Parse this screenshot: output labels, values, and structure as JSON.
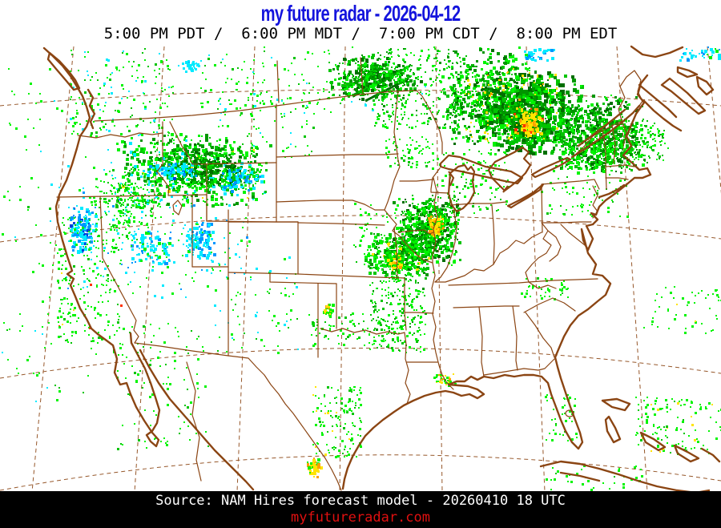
{
  "header": {
    "title": "my future radar - 2026-04-12",
    "title_color": "#1414dd",
    "subtitle": "5:00 PM PDT /  6:00 PM MDT /  7:00 PM CDT /  8:00 PM EDT",
    "subtitle_color": "#000000"
  },
  "footer": {
    "source_line": "Source: NAM Hires forecast model - 20260410 18 UTC",
    "source_color": "#ffffff",
    "website": "myfutureradar.com",
    "website_color": "#e01010",
    "bar_color": "#000000"
  },
  "map": {
    "line_color": "#8b4513",
    "background": "#ffffff",
    "region": "Continental United States with southern Canada, northern Mexico, Cuba and Bahamas",
    "graticule": "dashed brown lat/lon lines"
  },
  "chart_data": {
    "type": "heatmap",
    "title": "Simulated composite radar reflectivity forecast",
    "legend_position": "none",
    "palette": {
      "G1": "#00f400",
      "G2": "#00c400",
      "G3": "#009600",
      "G4": "#006e00",
      "Y": "#ffe400",
      "O": "#ffa000",
      "C": "#00eaff",
      "B": "#0096ff",
      "D": "#0040d8",
      "R": "#ff3200"
    },
    "cell_fields": [
      "region",
      "cx",
      "cy",
      "w",
      "h",
      "count",
      "size",
      "dist",
      "colors"
    ],
    "cells": [
      [
        "pacific-offshore",
        75,
        290,
        150,
        420,
        130,
        2,
        "u",
        [
          [
            "G1",
            0.85
          ],
          [
            "C",
            0.1
          ],
          [
            "G2",
            0.05
          ]
        ]
      ],
      [
        "washington-coast",
        150,
        115,
        130,
        110,
        160,
        2,
        "u",
        [
          [
            "G1",
            0.6
          ],
          [
            "G2",
            0.25
          ],
          [
            "C",
            0.15
          ]
        ]
      ],
      [
        "bc-cyan-patch",
        237,
        80,
        28,
        14,
        25,
        3,
        "g",
        [
          [
            "C",
            0.9
          ],
          [
            "B",
            0.1
          ]
        ]
      ],
      [
        "southern-canada-prairie",
        400,
        100,
        300,
        90,
        200,
        2,
        "u",
        [
          [
            "G1",
            0.75
          ],
          [
            "G2",
            0.2
          ],
          [
            "C",
            0.05
          ]
        ]
      ],
      [
        "pacific-nw-mass",
        240,
        210,
        190,
        90,
        700,
        3,
        "g",
        [
          [
            "G1",
            0.45
          ],
          [
            "G2",
            0.3
          ],
          [
            "G3",
            0.15
          ],
          [
            "C",
            0.08
          ],
          [
            "Y",
            0.02
          ]
        ]
      ],
      [
        "pacific-nw-dark-core",
        255,
        205,
        90,
        50,
        220,
        3,
        "g",
        [
          [
            "G3",
            0.5
          ],
          [
            "G4",
            0.3
          ],
          [
            "G2",
            0.2
          ]
        ]
      ],
      [
        "oregon-cyan-streak",
        215,
        212,
        60,
        22,
        90,
        3,
        "g",
        [
          [
            "C",
            0.7
          ],
          [
            "B",
            0.25
          ],
          [
            "D",
            0.05
          ]
        ]
      ],
      [
        "idaho-cyan",
        300,
        222,
        60,
        30,
        80,
        3,
        "g",
        [
          [
            "C",
            0.6
          ],
          [
            "B",
            0.3
          ],
          [
            "G2",
            0.1
          ]
        ]
      ],
      [
        "oregon-coast-green",
        160,
        255,
        90,
        90,
        220,
        2,
        "g",
        [
          [
            "G1",
            0.6
          ],
          [
            "G2",
            0.3
          ],
          [
            "C",
            0.1
          ]
        ]
      ],
      [
        "sierra-cyan",
        103,
        285,
        34,
        60,
        140,
        3,
        "g",
        [
          [
            "C",
            0.55
          ],
          [
            "B",
            0.35
          ],
          [
            "D",
            0.1
          ]
        ]
      ],
      [
        "nevada-cyan",
        188,
        308,
        50,
        40,
        90,
        3,
        "u",
        [
          [
            "C",
            0.7
          ],
          [
            "B",
            0.2
          ],
          [
            "G1",
            0.1
          ]
        ]
      ],
      [
        "utah-cyan",
        247,
        297,
        40,
        50,
        110,
        3,
        "g",
        [
          [
            "C",
            0.6
          ],
          [
            "B",
            0.3
          ],
          [
            "G1",
            0.1
          ]
        ]
      ],
      [
        "great-basin-scatter",
        190,
        300,
        240,
        140,
        160,
        2,
        "u",
        [
          [
            "C",
            0.45
          ],
          [
            "G1",
            0.45
          ],
          [
            "B",
            0.1
          ]
        ]
      ],
      [
        "california-coast",
        110,
        350,
        80,
        160,
        200,
        2,
        "u",
        [
          [
            "G1",
            0.8
          ],
          [
            "G2",
            0.15
          ],
          [
            "Y",
            0.03
          ],
          [
            "R",
            0.02
          ]
        ]
      ],
      [
        "socal-nw-mexico",
        200,
        480,
        120,
        160,
        110,
        2,
        "u",
        [
          [
            "G1",
            0.8
          ],
          [
            "G2",
            0.2
          ]
        ]
      ],
      [
        "colorado-nm-scatter",
        320,
        380,
        120,
        120,
        70,
        2,
        "u",
        [
          [
            "G1",
            0.6
          ],
          [
            "C",
            0.3
          ],
          [
            "G2",
            0.1
          ]
        ]
      ],
      [
        "north-dakota-band",
        465,
        95,
        110,
        55,
        350,
        3,
        "g",
        [
          [
            "G2",
            0.35
          ],
          [
            "G3",
            0.3
          ],
          [
            "G4",
            0.2
          ],
          [
            "G1",
            0.15
          ]
        ]
      ],
      [
        "minnesota-band",
        520,
        110,
        110,
        100,
        300,
        2,
        "u",
        [
          [
            "G1",
            0.5
          ],
          [
            "G2",
            0.3
          ],
          [
            "G3",
            0.2
          ]
        ]
      ],
      [
        "ontario-mass-west",
        610,
        120,
        120,
        120,
        550,
        3,
        "g",
        [
          [
            "G1",
            0.4
          ],
          [
            "G2",
            0.3
          ],
          [
            "G3",
            0.2
          ],
          [
            "G4",
            0.1
          ]
        ]
      ],
      [
        "ontario-mass-core",
        660,
        140,
        120,
        100,
        650,
        4,
        "g",
        [
          [
            "G2",
            0.3
          ],
          [
            "G3",
            0.3
          ],
          [
            "G4",
            0.25
          ],
          [
            "G1",
            0.15
          ]
        ]
      ],
      [
        "ontario-yellow-core",
        658,
        152,
        34,
        34,
        120,
        3,
        "g",
        [
          [
            "Y",
            0.75
          ],
          [
            "O",
            0.2
          ],
          [
            "R",
            0.05
          ]
        ]
      ],
      [
        "ontario-yellow-spray",
        640,
        130,
        120,
        90,
        80,
        2,
        "u",
        [
          [
            "Y",
            0.8
          ],
          [
            "O",
            0.2
          ]
        ]
      ],
      [
        "ontario-mass-east",
        745,
        160,
        110,
        90,
        450,
        3,
        "g",
        [
          [
            "G2",
            0.35
          ],
          [
            "G3",
            0.3
          ],
          [
            "G1",
            0.2
          ],
          [
            "G4",
            0.15
          ]
        ]
      ],
      [
        "quebec-taper",
        800,
        175,
        70,
        60,
        150,
        2,
        "g",
        [
          [
            "G1",
            0.5
          ],
          [
            "G2",
            0.35
          ],
          [
            "G3",
            0.15
          ]
        ]
      ],
      [
        "upstate-ny-band",
        745,
        185,
        110,
        60,
        280,
        3,
        "g",
        [
          [
            "G1",
            0.4
          ],
          [
            "G2",
            0.3
          ],
          [
            "G3",
            0.2
          ],
          [
            "G4",
            0.1
          ]
        ]
      ],
      [
        "new-england-scatter",
        730,
        235,
        110,
        70,
        90,
        2,
        "u",
        [
          [
            "G1",
            0.8
          ],
          [
            "G2",
            0.2
          ]
        ]
      ],
      [
        "montreal-cyan",
        672,
        67,
        36,
        14,
        30,
        3,
        "u",
        [
          [
            "C",
            0.7
          ],
          [
            "B",
            0.3
          ]
        ]
      ],
      [
        "topright-corner-cyan",
        872,
        66,
        50,
        16,
        35,
        3,
        "u",
        [
          [
            "C",
            0.7
          ],
          [
            "B",
            0.2
          ],
          [
            "G1",
            0.1
          ]
        ]
      ],
      [
        "wisconsin-michigan-scatter",
        590,
        225,
        90,
        80,
        120,
        2,
        "u",
        [
          [
            "G1",
            0.7
          ],
          [
            "G2",
            0.3
          ]
        ]
      ],
      [
        "illinois-blob",
        532,
        285,
        85,
        85,
        600,
        3,
        "g",
        [
          [
            "G1",
            0.35
          ],
          [
            "G2",
            0.3
          ],
          [
            "G3",
            0.2
          ],
          [
            "G4",
            0.15
          ]
        ]
      ],
      [
        "illinois-yellow-core",
        542,
        280,
        20,
        26,
        60,
        3,
        "g",
        [
          [
            "Y",
            0.7
          ],
          [
            "O",
            0.3
          ]
        ]
      ],
      [
        "missouri-band",
        495,
        318,
        85,
        55,
        350,
        3,
        "g",
        [
          [
            "G1",
            0.4
          ],
          [
            "G2",
            0.3
          ],
          [
            "G3",
            0.2
          ],
          [
            "Y",
            0.05
          ],
          [
            "G4",
            0.05
          ]
        ]
      ],
      [
        "missouri-yellow-spot",
        492,
        328,
        16,
        16,
        30,
        3,
        "g",
        [
          [
            "Y",
            0.75
          ],
          [
            "O",
            0.25
          ]
        ]
      ],
      [
        "arkansas-trail",
        495,
        385,
        70,
        110,
        240,
        2,
        "u",
        [
          [
            "G1",
            0.6
          ],
          [
            "G2",
            0.3
          ],
          [
            "G3",
            0.1
          ]
        ]
      ],
      [
        "oklahoma-scatter",
        445,
        410,
        120,
        40,
        90,
        2,
        "u",
        [
          [
            "G1",
            0.7
          ],
          [
            "G2",
            0.3
          ]
        ]
      ],
      [
        "texas-panhandle-spot",
        408,
        386,
        14,
        18,
        30,
        3,
        "g",
        [
          [
            "G1",
            0.5
          ],
          [
            "Y",
            0.3
          ],
          [
            "O",
            0.2
          ]
        ]
      ],
      [
        "kansas-nebraska-scatter",
        475,
        290,
        70,
        80,
        60,
        2,
        "u",
        [
          [
            "G1",
            0.8
          ],
          [
            "G2",
            0.2
          ]
        ]
      ],
      [
        "iowa-minnesota-scatter",
        510,
        190,
        60,
        40,
        70,
        2,
        "u",
        [
          [
            "G1",
            0.8
          ],
          [
            "G2",
            0.2
          ]
        ]
      ],
      [
        "montana-scatter",
        330,
        150,
        120,
        90,
        80,
        2,
        "u",
        [
          [
            "G1",
            0.7
          ],
          [
            "C",
            0.15
          ],
          [
            "G2",
            0.15
          ]
        ]
      ],
      [
        "central-texas",
        420,
        525,
        60,
        90,
        130,
        2,
        "u",
        [
          [
            "G1",
            0.65
          ],
          [
            "G2",
            0.3
          ],
          [
            "Y",
            0.05
          ]
        ]
      ],
      [
        "south-texas-yellow-spot",
        390,
        582,
        18,
        26,
        45,
        3,
        "g",
        [
          [
            "G1",
            0.3
          ],
          [
            "Y",
            0.5
          ],
          [
            "O",
            0.2
          ]
        ]
      ],
      [
        "new-orleans-cluster",
        555,
        472,
        26,
        18,
        35,
        2,
        "g",
        [
          [
            "G1",
            0.6
          ],
          [
            "Y",
            0.3
          ],
          [
            "O",
            0.1
          ]
        ]
      ],
      [
        "carolina-specks",
        680,
        360,
        60,
        30,
        40,
        2,
        "u",
        [
          [
            "G1",
            0.9
          ],
          [
            "G2",
            0.1
          ]
        ]
      ],
      [
        "atlantic-specks",
        850,
        385,
        100,
        60,
        50,
        2,
        "u",
        [
          [
            "G1",
            0.9
          ],
          [
            "Y",
            0.1
          ]
        ]
      ],
      [
        "bahamas-specks",
        845,
        530,
        110,
        70,
        120,
        2,
        "u",
        [
          [
            "G1",
            0.7
          ],
          [
            "Y",
            0.2
          ],
          [
            "G2",
            0.1
          ]
        ]
      ],
      [
        "florida-specks",
        700,
        520,
        40,
        60,
        40,
        2,
        "u",
        [
          [
            "G1",
            0.9
          ],
          [
            "G2",
            0.1
          ]
        ]
      ],
      [
        "cuba-area-specks",
        740,
        595,
        120,
        30,
        35,
        2,
        "u",
        [
          [
            "G1",
            0.9
          ],
          [
            "G2",
            0.1
          ]
        ]
      ]
    ],
    "streak_fields": [
      "x1",
      "y1",
      "x2",
      "y2",
      "width",
      "color"
    ],
    "streaks": [
      [
        428,
        112,
        478,
        84,
        4,
        "G3"
      ],
      [
        440,
        120,
        494,
        90,
        4,
        "G3"
      ],
      [
        456,
        126,
        510,
        98,
        3,
        "G4"
      ],
      [
        470,
        106,
        512,
        82,
        3,
        "G2"
      ]
    ]
  }
}
